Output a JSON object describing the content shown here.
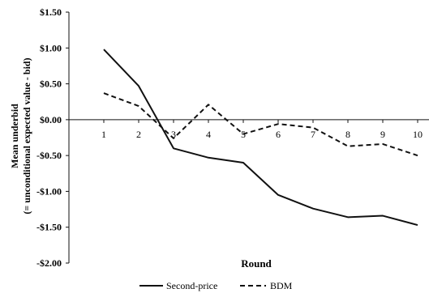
{
  "chart_data": {
    "type": "line",
    "title": "",
    "xlabel": "Round",
    "ylabel_line1": "Mean underbid",
    "ylabel_line2": "(= unconditional expected value - bid)",
    "ylim": [
      -2.0,
      1.5
    ],
    "y_ticks": [
      1.5,
      1.0,
      0.5,
      0.0,
      -0.5,
      -1.0,
      -1.5,
      -2.0
    ],
    "y_tick_labels": [
      "$1.50",
      "$1.00",
      "$0.50",
      "$0.00",
      "-$0.50",
      "-$1.00",
      "-$1.50",
      "-$2.00"
    ],
    "x": [
      1,
      2,
      3,
      4,
      5,
      6,
      7,
      8,
      9,
      10
    ],
    "x_tick_labels": [
      "1",
      "2",
      "3",
      "4",
      "5",
      "6",
      "7",
      "8",
      "9",
      "10"
    ],
    "grid": false,
    "legend_position": "bottom",
    "series": [
      {
        "name": "Second-price",
        "style": "solid",
        "values": [
          0.98,
          0.47,
          -0.4,
          -0.53,
          -0.6,
          -1.05,
          -1.24,
          -1.36,
          -1.34,
          -1.47
        ]
      },
      {
        "name": "BDM",
        "style": "dashed",
        "values": [
          0.37,
          0.19,
          -0.26,
          0.21,
          -0.2,
          -0.06,
          -0.11,
          -0.37,
          -0.34,
          -0.5
        ]
      }
    ]
  }
}
